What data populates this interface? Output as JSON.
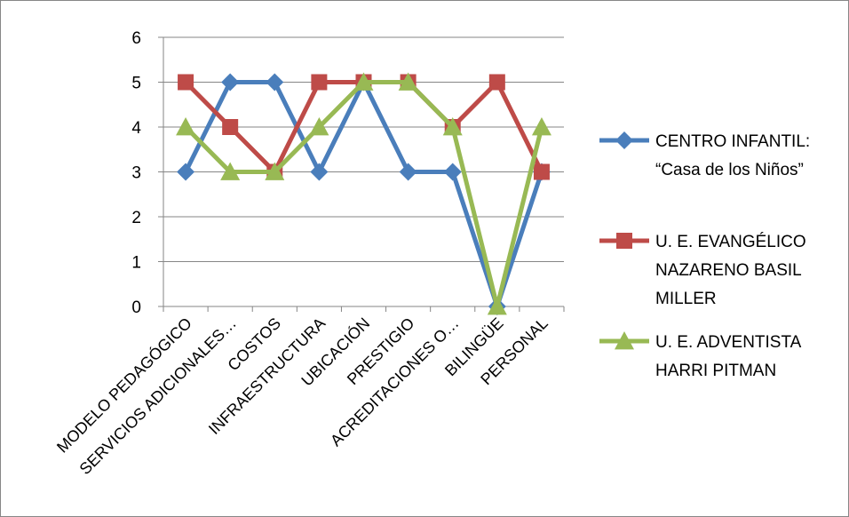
{
  "chart_data": {
    "type": "line",
    "title": "",
    "xlabel": "",
    "ylabel": "",
    "ylim": [
      0,
      6
    ],
    "yticks": [
      0,
      1,
      2,
      3,
      4,
      5,
      6
    ],
    "grid": "horizontal",
    "legend_position": "right",
    "categories": [
      "MODELO PEDAGÓGICO",
      "SERVICIOS ADICIONALES…",
      "COSTOS",
      "INFRAESTRUCTURA",
      "UBICACIÓN",
      "PRESTIGIO",
      "ACREDITACIONES O…",
      "BILINGÜE",
      "PERSONAL"
    ],
    "series": [
      {
        "name_lines": [
          "CENTRO INFANTIL:",
          "“Casa de los Niños”"
        ],
        "color": "#4a7ebb",
        "marker": "diamond",
        "values": [
          3,
          5,
          5,
          3,
          5,
          3,
          3,
          0,
          3
        ]
      },
      {
        "name_lines": [
          "U. E. EVANGÉLICO",
          "NAZARENO BASIL",
          "MILLER"
        ],
        "color": "#be4b48",
        "marker": "square",
        "values": [
          5,
          4,
          3,
          5,
          5,
          5,
          4,
          5,
          3
        ]
      },
      {
        "name_lines": [
          "U. E. ADVENTISTA",
          "HARRI PITMAN"
        ],
        "color": "#98b954",
        "marker": "triangle",
        "values": [
          4,
          3,
          3,
          4,
          5,
          5,
          4,
          0,
          4
        ]
      }
    ]
  }
}
